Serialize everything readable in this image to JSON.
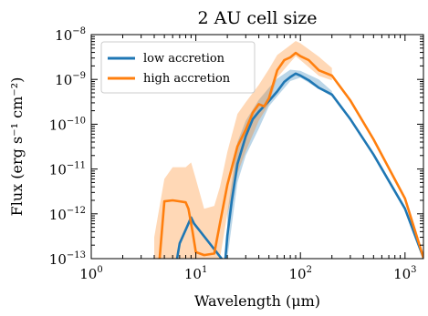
{
  "chart_data": {
    "type": "line",
    "title": "2 AU cell size",
    "xlabel": "Wavelength (μm)",
    "ylabel": "Flux (erg s⁻¹ cm⁻²)",
    "x_scale": "log",
    "y_scale": "log",
    "xlim": [
      1,
      1500
    ],
    "ylim": [
      1e-13,
      1e-08
    ],
    "x_ticks": [
      {
        "value": 1,
        "base": "10",
        "exp": "0"
      },
      {
        "value": 10,
        "base": "10",
        "exp": "1"
      },
      {
        "value": 100,
        "base": "10",
        "exp": "2"
      },
      {
        "value": 1000,
        "base": "10",
        "exp": "3"
      }
    ],
    "y_ticks": [
      {
        "value": 1e-13,
        "base": "10",
        "exp": "−13"
      },
      {
        "value": 1e-12,
        "base": "10",
        "exp": "−12"
      },
      {
        "value": 1e-11,
        "base": "10",
        "exp": "−11"
      },
      {
        "value": 1e-10,
        "base": "10",
        "exp": "−10"
      },
      {
        "value": 1e-09,
        "base": "10",
        "exp": "−9"
      },
      {
        "value": 1e-08,
        "base": "10",
        "exp": "−8"
      }
    ],
    "legend_position": "top-left",
    "series": [
      {
        "name": "low accretion",
        "color": "#1f77b4",
        "x": [
          6.5,
          7.0,
          8.0,
          9.0,
          9.6,
          19,
          20,
          22,
          25,
          30,
          35,
          40,
          50,
          60,
          70,
          80,
          90,
          100,
          120,
          150,
          200,
          300,
          500,
          1000,
          1500
        ],
        "y": [
          8e-14,
          2.2e-13,
          4.4e-13,
          8.3e-13,
          6.1e-13,
          8e-14,
          3.2e-13,
          1.9e-12,
          1.3e-11,
          5.4e-11,
          1.3e-10,
          1.9e-10,
          3.3e-10,
          5.4e-10,
          8.8e-10,
          1.13e-09,
          1.35e-09,
          1.22e-09,
          9.6e-10,
          6.5e-10,
          4.6e-10,
          1.3e-10,
          2.1e-11,
          1.3e-12,
          1.05e-13
        ],
        "band_x": [
          20,
          25,
          30,
          40,
          50,
          60,
          80,
          100,
          150,
          200
        ],
        "band_low": [
          1e-13,
          5e-12,
          2e-11,
          8e-11,
          2.5e-10,
          4.2e-10,
          9.2e-10,
          1.1e-09,
          6.1e-10,
          4.2e-10
        ],
        "band_high": [
          1e-12,
          4e-11,
          1.2e-10,
          3.5e-10,
          6.5e-10,
          1.05e-09,
          1.65e-09,
          1.55e-09,
          1e-09,
          5.5e-10
        ]
      },
      {
        "name": "high accretion",
        "color": "#ff7f0e",
        "x": [
          4.0,
          4.5,
          5.0,
          6.0,
          7.0,
          8.0,
          8.5,
          9.3,
          10,
          12,
          15,
          17,
          20,
          25,
          30,
          35,
          40,
          45,
          50,
          60,
          70,
          80,
          90,
          100,
          120,
          150,
          200,
          300,
          500,
          1000,
          1500
        ],
        "y": [
          6e-14,
          1e-13,
          1.9e-12,
          2e-12,
          1.9e-12,
          1.8e-12,
          1.3e-12,
          4e-13,
          1.4e-13,
          1.2e-13,
          1.3e-13,
          6.1e-13,
          4.4e-12,
          3.2e-11,
          7.5e-11,
          1.8e-10,
          2.8e-10,
          2.5e-10,
          3.8e-10,
          1.6e-09,
          2.7e-09,
          3.1e-09,
          3.9e-09,
          3.3e-09,
          2.7e-09,
          1.6e-09,
          1.22e-09,
          3.4e-10,
          4.6e-11,
          2.2e-12,
          1.05e-13
        ],
        "band_x": [
          4.0,
          5.0,
          6.0,
          7.0,
          8.0,
          9.0,
          10,
          12,
          15,
          17,
          20,
          25,
          30,
          40,
          50,
          60,
          80,
          90,
          100,
          150,
          200
        ],
        "band_low": [
          1e-13,
          1e-13,
          1e-13,
          1e-13,
          1e-13,
          1e-13,
          1e-13,
          1e-13,
          1e-13,
          1e-13,
          1e-12,
          8e-12,
          2.5e-11,
          1.2e-10,
          2.8e-10,
          1.1e-09,
          2.4e-09,
          3.3e-09,
          2.7e-09,
          1.2e-09,
          9.5e-10
        ],
        "band_high": [
          3e-13,
          6e-12,
          1.1e-11,
          1.1e-11,
          1.1e-11,
          1.4e-11,
          6e-12,
          1.3e-12,
          1.5e-12,
          4e-12,
          2.4e-11,
          1.7e-10,
          3.1e-10,
          7.5e-10,
          1.7e-09,
          3.5e-09,
          5.8e-09,
          7.2e-09,
          6.4e-09,
          3.2e-09,
          1.8e-09
        ]
      }
    ]
  }
}
